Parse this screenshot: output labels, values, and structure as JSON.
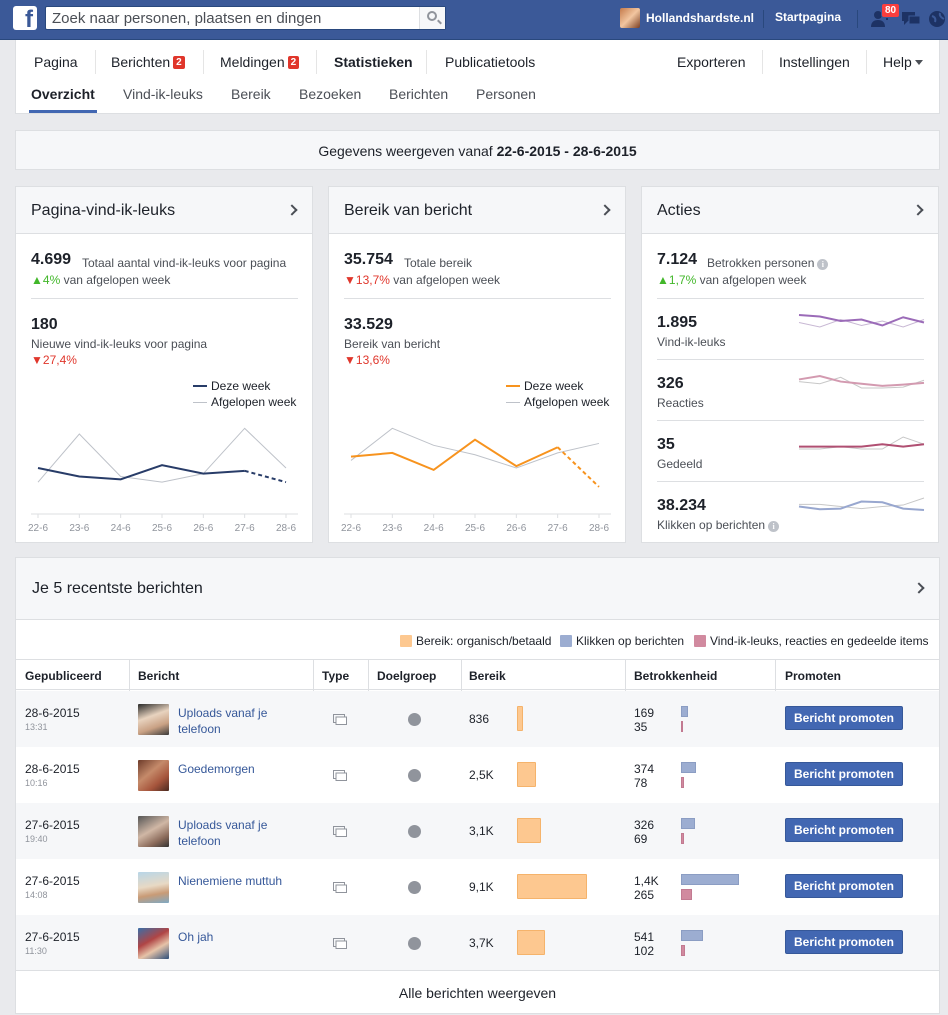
{
  "topbar": {
    "search_placeholder": "Zoek naar personen, plaatsen en dingen",
    "profile_name": "Hollandshardste.nl",
    "home_label": "Startpagina",
    "notif_count": "80"
  },
  "nav": {
    "tabs": [
      {
        "label": "Pagina"
      },
      {
        "label": "Berichten",
        "badge": "2"
      },
      {
        "label": "Meldingen",
        "badge": "2"
      },
      {
        "label": "Statistieken"
      },
      {
        "label": "Publicatietools"
      }
    ],
    "right": {
      "export": "Exporteren",
      "settings": "Instellingen",
      "help": "Help"
    },
    "subtabs": [
      "Overzicht",
      "Vind-ik-leuks",
      "Bereik",
      "Bezoeken",
      "Berichten",
      "Personen"
    ]
  },
  "datebar": {
    "prefix": "Gegevens weergeven vanaf",
    "range": "22-6-2015 - 28-6-2015"
  },
  "cards": {
    "likes": {
      "title": "Pagina-vind-ik-leuks",
      "total": "4.699",
      "total_desc": "Totaal aantal vind-ik-leuks voor pagina",
      "total_change": "4%",
      "total_change_desc": "van afgelopen week",
      "new": "180",
      "new_desc": "Nieuwe vind-ik-leuks voor pagina",
      "new_change": "27,4%",
      "legend_this": "Deze week",
      "legend_last": "Afgelopen week"
    },
    "reach": {
      "title": "Bereik van bericht",
      "total": "35.754",
      "total_desc": "Totale bereik",
      "total_change": "13,7%",
      "total_change_desc": "van afgelopen week",
      "post": "33.529",
      "post_desc": "Bereik van bericht",
      "post_change": "13,6%",
      "legend_this": "Deze week",
      "legend_last": "Afgelopen week"
    },
    "actions": {
      "title": "Acties",
      "total": "7.124",
      "total_desc": "Betrokken personen",
      "total_change": "1,7%",
      "total_change_desc": "van afgelopen week",
      "items": [
        {
          "value": "1.895",
          "label": "Vind-ik-leuks"
        },
        {
          "value": "326",
          "label": "Reacties"
        },
        {
          "value": "35",
          "label": "Gedeeld"
        },
        {
          "value": "38.234",
          "label": "Klikken op berichten"
        }
      ]
    }
  },
  "chart_data": [
    {
      "type": "line",
      "x": [
        "22-6",
        "23-6",
        "24-6",
        "25-6",
        "26-6",
        "27-6",
        "28-6"
      ],
      "series": [
        {
          "name": "Deze week",
          "values": [
            27,
            24,
            23,
            28,
            25,
            26,
            22
          ],
          "color": "#283c68"
        },
        {
          "name": "Afgelopen week",
          "values": [
            22,
            39,
            24,
            22,
            25,
            41,
            27
          ],
          "color": "#bec2c9"
        }
      ],
      "ylim": [
        15,
        45
      ]
    },
    {
      "type": "line",
      "x": [
        "22-6",
        "23-6",
        "24-6",
        "25-6",
        "26-6",
        "27-6",
        "28-6"
      ],
      "series": [
        {
          "name": "Deze week",
          "values": [
            5400,
            5600,
            4700,
            6300,
            4900,
            5900,
            3800
          ],
          "color": "#f7931e"
        },
        {
          "name": "Afgelopen week",
          "values": [
            5200,
            6900,
            6000,
            5500,
            4800,
            5600,
            6100
          ],
          "color": "#bec2c9"
        }
      ],
      "ylim": [
        3000,
        7500
      ]
    },
    {
      "type": "line",
      "title": "Vind-ik-leuks",
      "series": [
        {
          "values": [
            330,
            320,
            290,
            300,
            260,
            315,
            280
          ]
        },
        {
          "values": [
            280,
            250,
            300,
            260,
            290,
            250,
            300
          ]
        }
      ]
    },
    {
      "type": "line",
      "title": "Reacties",
      "series": [
        {
          "values": [
            50,
            58,
            45,
            40,
            35,
            38,
            42
          ]
        },
        {
          "values": [
            45,
            40,
            55,
            30,
            30,
            32,
            48
          ]
        }
      ]
    },
    {
      "type": "line",
      "title": "Gedeeld",
      "series": [
        {
          "values": [
            5,
            5,
            5,
            5,
            6,
            5,
            6
          ]
        },
        {
          "values": [
            4,
            4,
            5,
            4,
            4,
            9,
            6
          ]
        }
      ]
    },
    {
      "type": "line",
      "title": "Klikken op berichten",
      "series": [
        {
          "values": [
            5500,
            5100,
            5200,
            6200,
            6100,
            5200,
            5000
          ]
        },
        {
          "values": [
            5800,
            5800,
            5500,
            5200,
            5500,
            5700,
            6700
          ]
        }
      ]
    }
  ],
  "posts": {
    "title": "Je 5 recentste berichten",
    "legend": [
      "Bereik: organisch/betaald",
      "Klikken op berichten",
      "Vind-ik-leuks, reacties en gedeelde items"
    ],
    "columns": [
      "Gepubliceerd",
      "Bericht",
      "Type",
      "Doelgroep",
      "Bereik",
      "Betrokkenheid",
      "Promoten"
    ],
    "rows": [
      {
        "date": "28-6-2015",
        "time": "13:31",
        "title": "Uploads vanaf je telefoon",
        "reach": "836",
        "reach_n": 836,
        "clicks": "169",
        "clicks_n": 169,
        "likes": "35",
        "likes_n": 35,
        "btn": "Bericht promoten"
      },
      {
        "date": "28-6-2015",
        "time": "10:16",
        "title": "Goedemorgen",
        "reach": "2,5K",
        "reach_n": 2500,
        "clicks": "374",
        "clicks_n": 374,
        "likes": "78",
        "likes_n": 78,
        "btn": "Bericht promoten"
      },
      {
        "date": "27-6-2015",
        "time": "19:40",
        "title": "Uploads vanaf je telefoon",
        "reach": "3,1K",
        "reach_n": 3100,
        "clicks": "326",
        "clicks_n": 326,
        "likes": "69",
        "likes_n": 69,
        "btn": "Bericht promoten"
      },
      {
        "date": "27-6-2015",
        "time": "14:08",
        "title": "Nienemiene muttuh",
        "reach": "9,1K",
        "reach_n": 9100,
        "clicks": "1,4K",
        "clicks_n": 1400,
        "likes": "265",
        "likes_n": 265,
        "btn": "Bericht promoten"
      },
      {
        "date": "27-6-2015",
        "time": "11:30",
        "title": "Oh jah",
        "reach": "3,7K",
        "reach_n": 3700,
        "clicks": "541",
        "clicks_n": 541,
        "likes": "102",
        "likes_n": 102,
        "btn": "Bericht promoten"
      }
    ],
    "all_label": "Alle berichten weergeven"
  }
}
